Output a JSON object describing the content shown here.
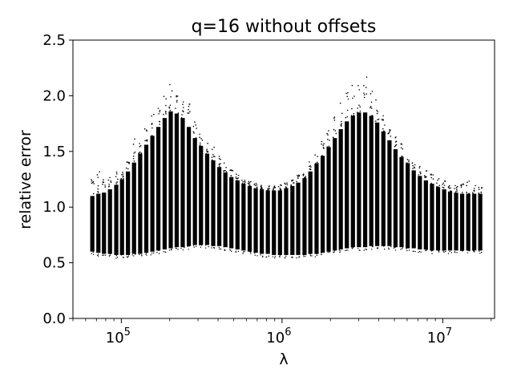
{
  "chart_data": {
    "type": "scatter",
    "title": "q=16 without offsets",
    "xlabel": "λ",
    "ylabel": "relative error",
    "xscale": "log",
    "xlim": [
      50000,
      21000000
    ],
    "ylim": [
      0,
      2.5
    ],
    "yticks": [
      "0.0",
      "0.5",
      "1.0",
      "1.5",
      "2.0",
      "2.5"
    ],
    "yticks_values": [
      0,
      0.5,
      1.0,
      1.5,
      2.0,
      2.5
    ],
    "xticks": [
      {
        "base": "10",
        "exp": "5",
        "value": 100000
      },
      {
        "base": "10",
        "exp": "6",
        "value": 1000000
      },
      {
        "base": "10",
        "exp": "7",
        "value": 10000000
      }
    ],
    "grid": false,
    "legend": "none",
    "marker_color": "#000000",
    "columns": [
      {
        "x": 66000,
        "ymin": 0.6,
        "ymax": 1.1,
        "outlier_max": 1.3
      },
      {
        "x": 72000,
        "ymin": 0.59,
        "ymax": 1.12,
        "outlier_max": 1.34
      },
      {
        "x": 78000,
        "ymin": 0.58,
        "ymax": 1.13,
        "outlier_max": 1.28
      },
      {
        "x": 85000,
        "ymin": 0.58,
        "ymax": 1.16,
        "outlier_max": 1.3
      },
      {
        "x": 93000,
        "ymin": 0.57,
        "ymax": 1.2,
        "outlier_max": 1.33
      },
      {
        "x": 101000,
        "ymin": 0.57,
        "ymax": 1.25,
        "outlier_max": 1.38
      },
      {
        "x": 110000,
        "ymin": 0.57,
        "ymax": 1.32,
        "outlier_max": 1.46
      },
      {
        "x": 120000,
        "ymin": 0.58,
        "ymax": 1.4,
        "outlier_max": 1.62
      },
      {
        "x": 131000,
        "ymin": 0.58,
        "ymax": 1.48,
        "outlier_max": 1.58
      },
      {
        "x": 143000,
        "ymin": 0.59,
        "ymax": 1.56,
        "outlier_max": 1.76
      },
      {
        "x": 156000,
        "ymin": 0.6,
        "ymax": 1.64,
        "outlier_max": 1.85
      },
      {
        "x": 170000,
        "ymin": 0.61,
        "ymax": 1.72,
        "outlier_max": 1.95
      },
      {
        "x": 186000,
        "ymin": 0.62,
        "ymax": 1.8,
        "outlier_max": 2.06
      },
      {
        "x": 203000,
        "ymin": 0.63,
        "ymax": 1.86,
        "outlier_max": 2.2
      },
      {
        "x": 221000,
        "ymin": 0.64,
        "ymax": 1.84,
        "outlier_max": 2.05
      },
      {
        "x": 241000,
        "ymin": 0.64,
        "ymax": 1.8,
        "outlier_max": 1.95
      },
      {
        "x": 263000,
        "ymin": 0.65,
        "ymax": 1.72,
        "outlier_max": 1.93
      },
      {
        "x": 287000,
        "ymin": 0.66,
        "ymax": 1.62,
        "outlier_max": 1.78
      },
      {
        "x": 313000,
        "ymin": 0.66,
        "ymax": 1.55,
        "outlier_max": 1.68
      },
      {
        "x": 342000,
        "ymin": 0.66,
        "ymax": 1.48,
        "outlier_max": 1.6
      },
      {
        "x": 373000,
        "ymin": 0.65,
        "ymax": 1.42,
        "outlier_max": 1.55
      },
      {
        "x": 407000,
        "ymin": 0.65,
        "ymax": 1.36,
        "outlier_max": 1.46
      },
      {
        "x": 444000,
        "ymin": 0.64,
        "ymax": 1.31,
        "outlier_max": 1.4
      },
      {
        "x": 484000,
        "ymin": 0.63,
        "ymax": 1.27,
        "outlier_max": 1.36
      },
      {
        "x": 528000,
        "ymin": 0.62,
        "ymax": 1.24,
        "outlier_max": 1.3
      },
      {
        "x": 576000,
        "ymin": 0.61,
        "ymax": 1.21,
        "outlier_max": 1.27
      },
      {
        "x": 629000,
        "ymin": 0.6,
        "ymax": 1.19,
        "outlier_max": 1.24
      },
      {
        "x": 686000,
        "ymin": 0.59,
        "ymax": 1.17,
        "outlier_max": 1.22
      },
      {
        "x": 748000,
        "ymin": 0.58,
        "ymax": 1.16,
        "outlier_max": 1.2
      },
      {
        "x": 816000,
        "ymin": 0.58,
        "ymax": 1.15,
        "outlier_max": 1.19
      },
      {
        "x": 890000,
        "ymin": 0.57,
        "ymax": 1.15,
        "outlier_max": 1.19
      },
      {
        "x": 971000,
        "ymin": 0.57,
        "ymax": 1.15,
        "outlier_max": 1.2
      },
      {
        "x": 1060000,
        "ymin": 0.57,
        "ymax": 1.17,
        "outlier_max": 1.22
      },
      {
        "x": 1160000,
        "ymin": 0.57,
        "ymax": 1.19,
        "outlier_max": 1.25
      },
      {
        "x": 1260000,
        "ymin": 0.57,
        "ymax": 1.22,
        "outlier_max": 1.29
      },
      {
        "x": 1380000,
        "ymin": 0.57,
        "ymax": 1.26,
        "outlier_max": 1.34
      },
      {
        "x": 1500000,
        "ymin": 0.58,
        "ymax": 1.32,
        "outlier_max": 1.42
      },
      {
        "x": 1640000,
        "ymin": 0.58,
        "ymax": 1.39,
        "outlier_max": 1.52
      },
      {
        "x": 1790000,
        "ymin": 0.59,
        "ymax": 1.46,
        "outlier_max": 1.62
      },
      {
        "x": 1950000,
        "ymin": 0.6,
        "ymax": 1.54,
        "outlier_max": 1.72
      },
      {
        "x": 2130000,
        "ymin": 0.61,
        "ymax": 1.62,
        "outlier_max": 1.82
      },
      {
        "x": 2320000,
        "ymin": 0.62,
        "ymax": 1.7,
        "outlier_max": 1.94
      },
      {
        "x": 2530000,
        "ymin": 0.63,
        "ymax": 1.77,
        "outlier_max": 2.05
      },
      {
        "x": 2760000,
        "ymin": 0.64,
        "ymax": 1.82,
        "outlier_max": 2.12
      },
      {
        "x": 3010000,
        "ymin": 0.64,
        "ymax": 1.85,
        "outlier_max": 2.2
      },
      {
        "x": 3290000,
        "ymin": 0.64,
        "ymax": 1.85,
        "outlier_max": 2.18
      },
      {
        "x": 3590000,
        "ymin": 0.65,
        "ymax": 1.82,
        "outlier_max": 2.05
      },
      {
        "x": 3910000,
        "ymin": 0.65,
        "ymax": 1.76,
        "outlier_max": 1.98
      },
      {
        "x": 4270000,
        "ymin": 0.65,
        "ymax": 1.68,
        "outlier_max": 1.86
      },
      {
        "x": 4660000,
        "ymin": 0.65,
        "ymax": 1.6,
        "outlier_max": 1.76
      },
      {
        "x": 5080000,
        "ymin": 0.64,
        "ymax": 1.52,
        "outlier_max": 1.66
      },
      {
        "x": 5540000,
        "ymin": 0.64,
        "ymax": 1.45,
        "outlier_max": 1.58
      },
      {
        "x": 6050000,
        "ymin": 0.63,
        "ymax": 1.39,
        "outlier_max": 1.5
      },
      {
        "x": 6600000,
        "ymin": 0.63,
        "ymax": 1.33,
        "outlier_max": 1.44
      },
      {
        "x": 7200000,
        "ymin": 0.62,
        "ymax": 1.28,
        "outlier_max": 1.38
      },
      {
        "x": 7850000,
        "ymin": 0.62,
        "ymax": 1.24,
        "outlier_max": 1.33
      },
      {
        "x": 8570000,
        "ymin": 0.61,
        "ymax": 1.21,
        "outlier_max": 1.3
      },
      {
        "x": 9350000,
        "ymin": 0.61,
        "ymax": 1.18,
        "outlier_max": 1.26
      },
      {
        "x": 10200000,
        "ymin": 0.61,
        "ymax": 1.16,
        "outlier_max": 1.24
      },
      {
        "x": 11100000,
        "ymin": 0.61,
        "ymax": 1.14,
        "outlier_max": 1.21
      },
      {
        "x": 12100000,
        "ymin": 0.61,
        "ymax": 1.13,
        "outlier_max": 1.2
      },
      {
        "x": 13200000,
        "ymin": 0.61,
        "ymax": 1.12,
        "outlier_max": 1.22
      },
      {
        "x": 14400000,
        "ymin": 0.61,
        "ymax": 1.12,
        "outlier_max": 1.25
      },
      {
        "x": 15700000,
        "ymin": 0.61,
        "ymax": 1.12,
        "outlier_max": 1.2
      },
      {
        "x": 17100000,
        "ymin": 0.61,
        "ymax": 1.12,
        "outlier_max": 1.19
      }
    ]
  }
}
